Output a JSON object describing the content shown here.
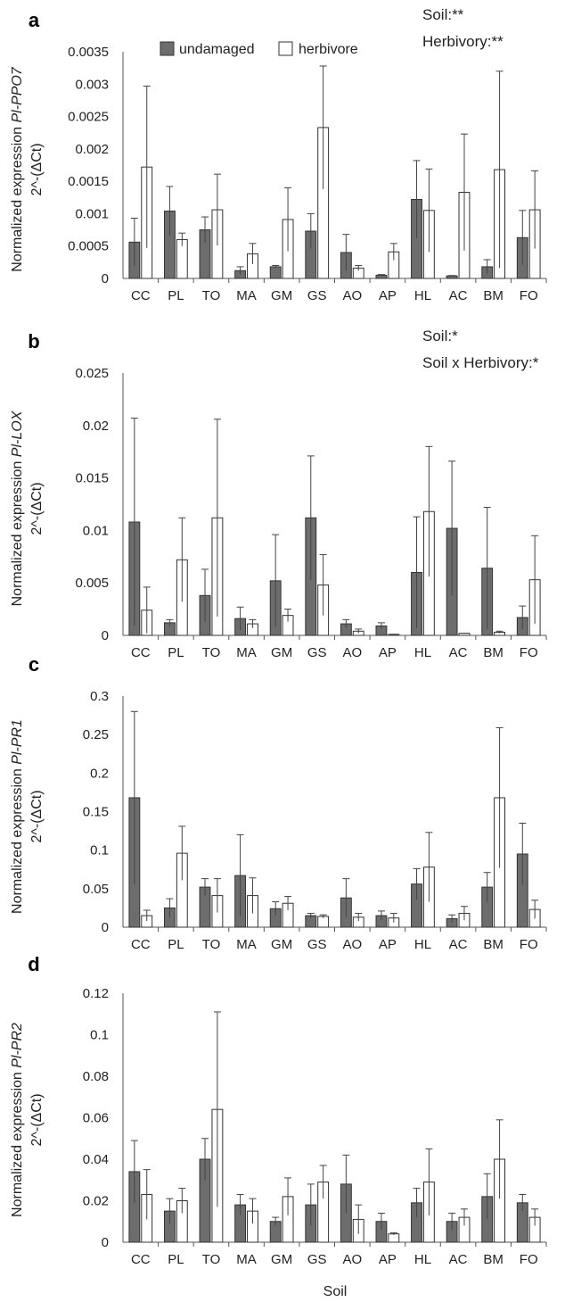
{
  "legend": {
    "undamaged": "undamaged",
    "herbivore": "herbivore"
  },
  "xlabel": "Soil",
  "colors": {
    "undamaged": "#6d6d6d",
    "herbivore": "#ffffff",
    "stroke": "#333333"
  },
  "chart_data": [
    {
      "type": "bar",
      "panel": "a",
      "ylabel_line1_prefix": "Normalized expression ",
      "gene": "Pl-PPO7",
      "ylabel_line2": "2^-(ΔCt)",
      "annotations": [
        "Soil:**",
        "Herbivory:**"
      ],
      "ylim": [
        0,
        0.0035
      ],
      "yticks": [
        "0",
        "0.0005",
        "0.001",
        "0.0015",
        "0.002",
        "0.0025",
        "0.003",
        "0.0035"
      ],
      "categories": [
        "CC",
        "PL",
        "TO",
        "MA",
        "GM",
        "GS",
        "AO",
        "AP",
        "HL",
        "AC",
        "BM",
        "FO"
      ],
      "series": [
        {
          "name": "undamaged",
          "values": [
            0.00056,
            0.00104,
            0.00075,
            0.00012,
            0.00018,
            0.00073,
            0.0004,
            5e-05,
            0.00122,
            4e-05,
            0.00018,
            0.00063
          ],
          "errors": [
            0.00037,
            0.00038,
            0.0002,
            6e-05,
            2e-05,
            0.00027,
            0.00028,
            1e-05,
            0.0006,
            5e-06,
            0.00011,
            0.00042
          ]
        },
        {
          "name": "herbivore",
          "values": [
            0.00172,
            0.0006,
            0.00106,
            0.00038,
            0.00091,
            0.00233,
            0.00016,
            0.00041,
            0.00105,
            0.00133,
            0.00168,
            0.00106
          ],
          "errors": [
            0.00125,
            0.0001,
            0.00055,
            0.00016,
            0.00049,
            0.00095,
            4e-05,
            0.00013,
            0.00064,
            0.0009,
            0.00152,
            0.0006
          ]
        }
      ]
    },
    {
      "type": "bar",
      "panel": "b",
      "ylabel_line1_prefix": "Normalized expression ",
      "gene": "Pl-LOX",
      "ylabel_line2": "2^-(ΔCt)",
      "annotations": [
        "Soil:*",
        "Soil x Herbivory:*"
      ],
      "ylim": [
        0,
        0.025
      ],
      "yticks": [
        "0",
        "0.005",
        "0.01",
        "0.015",
        "0.02",
        "0.025"
      ],
      "categories": [
        "CC",
        "PL",
        "TO",
        "MA",
        "GM",
        "GS",
        "AO",
        "AP",
        "HL",
        "AC",
        "BM",
        "FO"
      ],
      "series": [
        {
          "name": "undamaged",
          "values": [
            0.0108,
            0.0012,
            0.0038,
            0.0016,
            0.0052,
            0.0112,
            0.0011,
            0.0009,
            0.006,
            0.0102,
            0.0064,
            0.0017
          ],
          "errors": [
            0.0099,
            0.0003,
            0.0025,
            0.0011,
            0.0044,
            0.0059,
            0.0004,
            0.0003,
            0.0053,
            0.0064,
            0.0058,
            0.0011
          ]
        },
        {
          "name": "herbivore",
          "values": [
            0.0024,
            0.0072,
            0.0112,
            0.0011,
            0.0019,
            0.0048,
            0.0004,
            0.0001,
            0.0118,
            0.0002,
            0.0003,
            0.0053
          ],
          "errors": [
            0.0022,
            0.004,
            0.0094,
            0.0004,
            0.0006,
            0.0029,
            0.0002,
            0.0,
            0.0062,
            0.0,
            0.0001,
            0.0042
          ]
        }
      ]
    },
    {
      "type": "bar",
      "panel": "c",
      "ylabel_line1_prefix": "Normalized expression ",
      "gene": "Pl-PR1",
      "ylabel_line2": "2^-(ΔCt)",
      "annotations": [],
      "ylim": [
        0,
        0.3
      ],
      "yticks": [
        "0",
        "0.05",
        "0.1",
        "0.15",
        "0.2",
        "0.25",
        "0.3"
      ],
      "categories": [
        "CC",
        "PL",
        "TO",
        "MA",
        "GM",
        "GS",
        "AO",
        "AP",
        "HL",
        "AC",
        "BM",
        "FO"
      ],
      "series": [
        {
          "name": "undamaged",
          "values": [
            0.168,
            0.025,
            0.052,
            0.067,
            0.024,
            0.015,
            0.038,
            0.015,
            0.056,
            0.011,
            0.052,
            0.095
          ],
          "errors": [
            0.112,
            0.012,
            0.011,
            0.053,
            0.009,
            0.003,
            0.025,
            0.006,
            0.02,
            0.005,
            0.019,
            0.04
          ]
        },
        {
          "name": "herbivore",
          "values": [
            0.015,
            0.096,
            0.041,
            0.041,
            0.031,
            0.014,
            0.013,
            0.012,
            0.078,
            0.018,
            0.168,
            0.023
          ],
          "errors": [
            0.007,
            0.035,
            0.022,
            0.023,
            0.009,
            0.002,
            0.005,
            0.006,
            0.045,
            0.009,
            0.091,
            0.012
          ]
        }
      ]
    },
    {
      "type": "bar",
      "panel": "d",
      "ylabel_line1_prefix": "Normalized expression ",
      "gene": "Pl-PR2",
      "ylabel_line2": "2^-(ΔCt)",
      "annotations": [],
      "ylim": [
        0,
        0.12
      ],
      "yticks": [
        "0",
        "0.02",
        "0.04",
        "0.06",
        "0.08",
        "0.1",
        "0.12"
      ],
      "categories": [
        "CC",
        "PL",
        "TO",
        "MA",
        "GM",
        "GS",
        "AO",
        "AP",
        "HL",
        "AC",
        "BM",
        "FO"
      ],
      "series": [
        {
          "name": "undamaged",
          "values": [
            0.034,
            0.015,
            0.04,
            0.018,
            0.01,
            0.018,
            0.028,
            0.01,
            0.019,
            0.01,
            0.022,
            0.019
          ],
          "errors": [
            0.015,
            0.006,
            0.01,
            0.005,
            0.002,
            0.01,
            0.014,
            0.004,
            0.007,
            0.004,
            0.011,
            0.004
          ]
        },
        {
          "name": "herbivore",
          "values": [
            0.023,
            0.02,
            0.064,
            0.015,
            0.022,
            0.029,
            0.011,
            0.004,
            0.029,
            0.012,
            0.04,
            0.012
          ],
          "errors": [
            0.012,
            0.006,
            0.047,
            0.006,
            0.009,
            0.008,
            0.007,
            0.0005,
            0.016,
            0.004,
            0.019,
            0.004
          ]
        }
      ]
    }
  ]
}
